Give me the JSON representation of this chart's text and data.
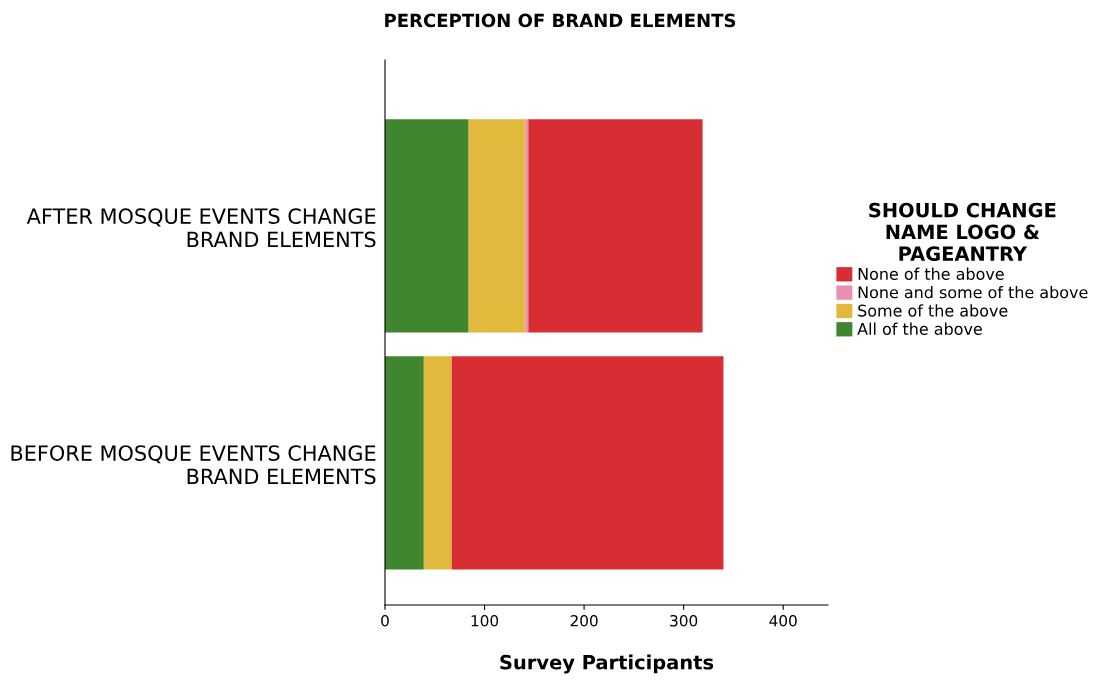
{
  "chart_data": {
    "type": "bar",
    "orientation": "horizontal",
    "stacked": true,
    "title": "PERCEPTION OF BRAND ELEMENTS",
    "xlabel": "Survey Participants",
    "legend_title": "SHOULD CHANGE\nNAME LOGO &\nPAGEANTRY",
    "legend": "right",
    "categories": [
      "AFTER MOSQUE EVENTS CHANGE\nBRAND ELEMENTS",
      "BEFORE MOSQUE EVENTS CHANGE\nBRAND ELEMENTS"
    ],
    "series": [
      {
        "name": "All of the above",
        "color": "#3f862f",
        "values": [
          84,
          39
        ]
      },
      {
        "name": "Some of the above",
        "color": "#e1b93c",
        "values": [
          57,
          28
        ]
      },
      {
        "name": "None and some of the above",
        "color": "#e88fb2",
        "values": [
          3,
          0
        ]
      },
      {
        "name": "None of the above",
        "color": "#d72e34",
        "values": [
          175,
          273
        ]
      }
    ],
    "xlim": [
      0,
      445
    ],
    "xticks": [
      0,
      100,
      200,
      300,
      400
    ],
    "grid": false
  }
}
